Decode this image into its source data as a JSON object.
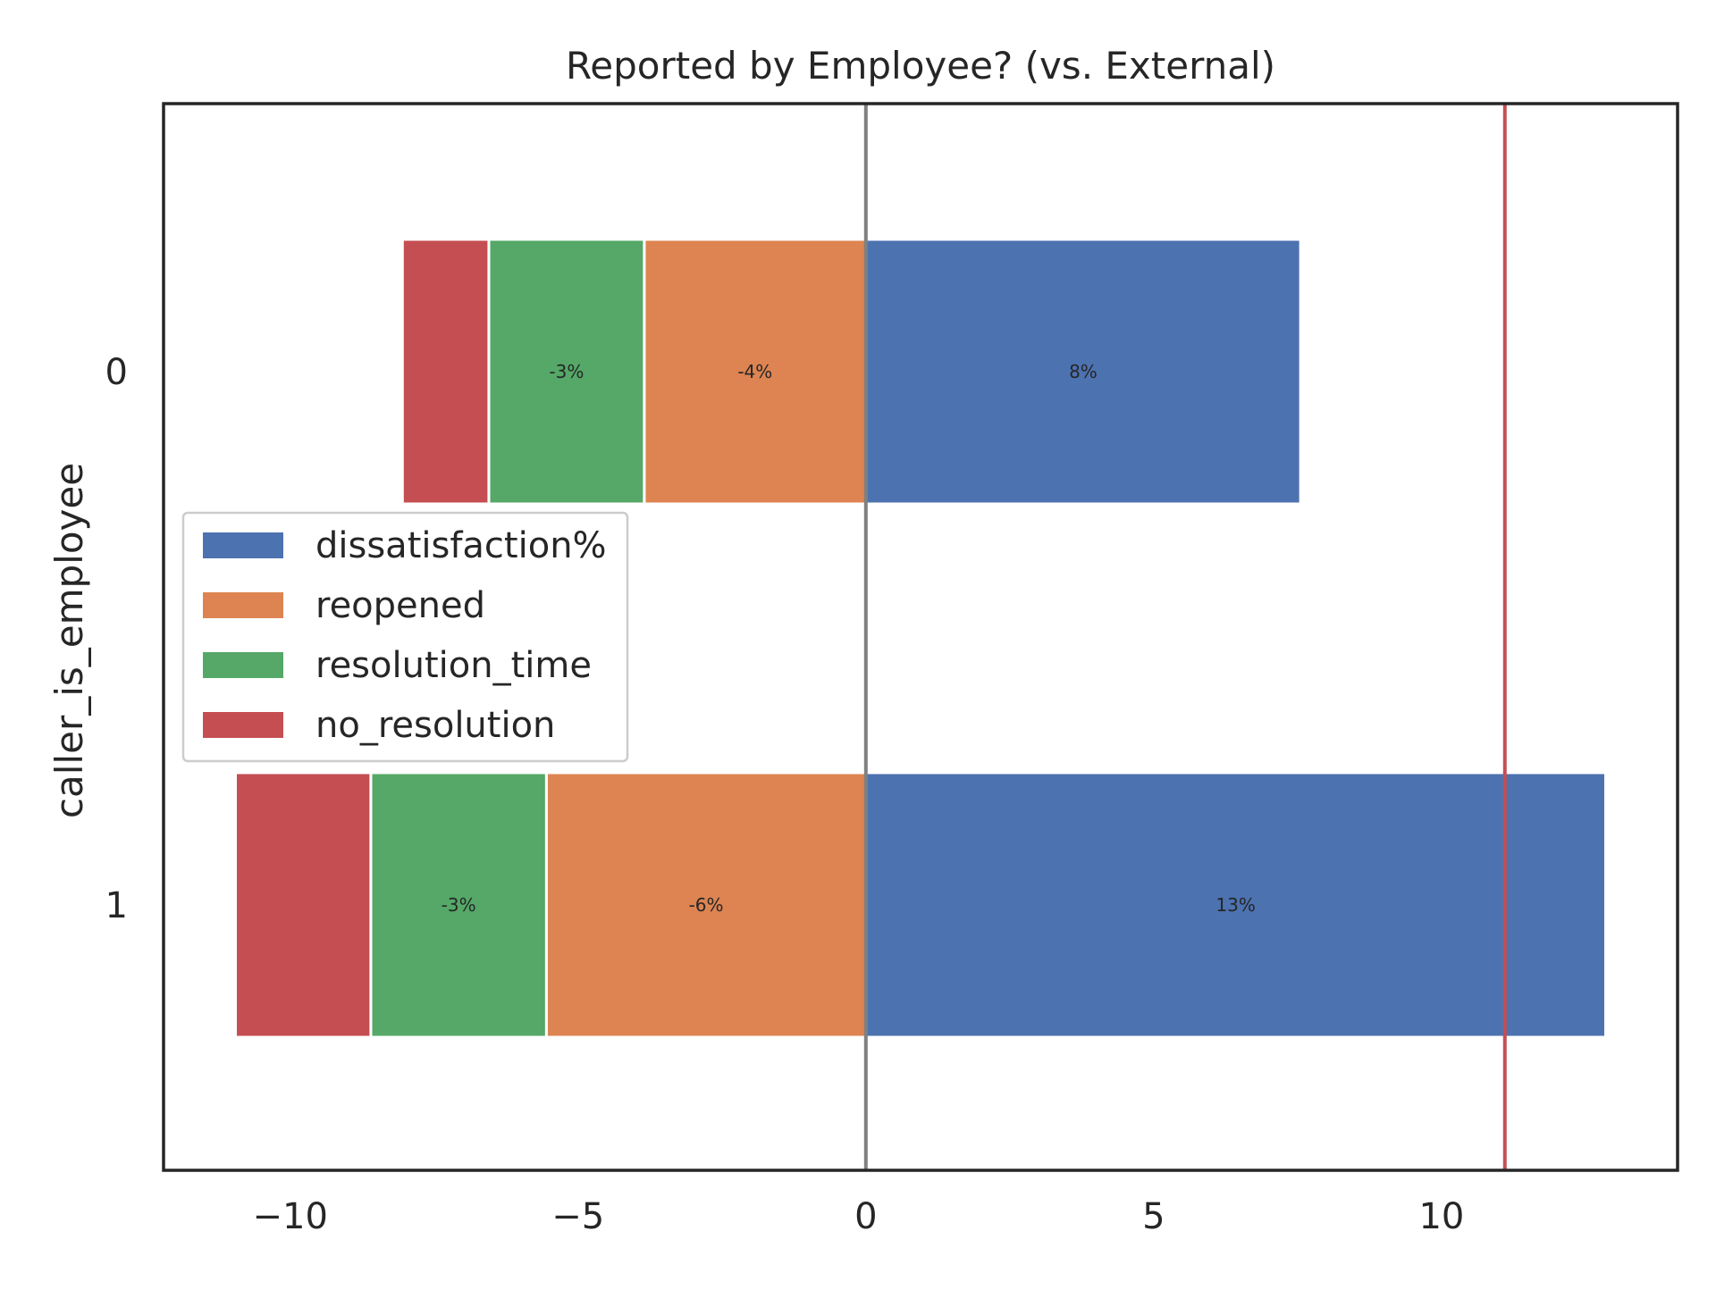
{
  "chart_data": {
    "type": "bar",
    "orientation": "horizontal",
    "stacked": "diverging",
    "title": "Reported by Employee? (vs. External)",
    "xlabel": "",
    "ylabel": "caller_is_employee",
    "categories": [
      "0",
      "1"
    ],
    "xlim": [
      -12.2,
      14.1
    ],
    "xticks": [
      -10,
      -5,
      0,
      5,
      10
    ],
    "xtick_labels": [
      "−10",
      "−5",
      "0",
      "5",
      "10"
    ],
    "series": [
      {
        "name": "dissatisfaction%",
        "color": "#4c72b0",
        "values": [
          7.55,
          12.85
        ],
        "labels": [
          "8%",
          "13%"
        ]
      },
      {
        "name": "reopened",
        "color": "#dd8452",
        "values": [
          -3.85,
          -5.55
        ],
        "labels": [
          "-4%",
          "-6%"
        ]
      },
      {
        "name": "resolution_time",
        "color": "#55a868",
        "values": [
          -2.7,
          -3.05
        ],
        "labels": [
          "-3%",
          "-3%"
        ]
      },
      {
        "name": "no_resolution",
        "color": "#c44e52",
        "values": [
          -1.5,
          -2.35
        ],
        "labels": [
          "",
          ""
        ]
      }
    ],
    "reference_lines": [
      {
        "x": 0,
        "color": "#808080"
      },
      {
        "x": 11.1,
        "color": "#c44e52"
      }
    ],
    "grid": false,
    "legend": "center-left"
  }
}
